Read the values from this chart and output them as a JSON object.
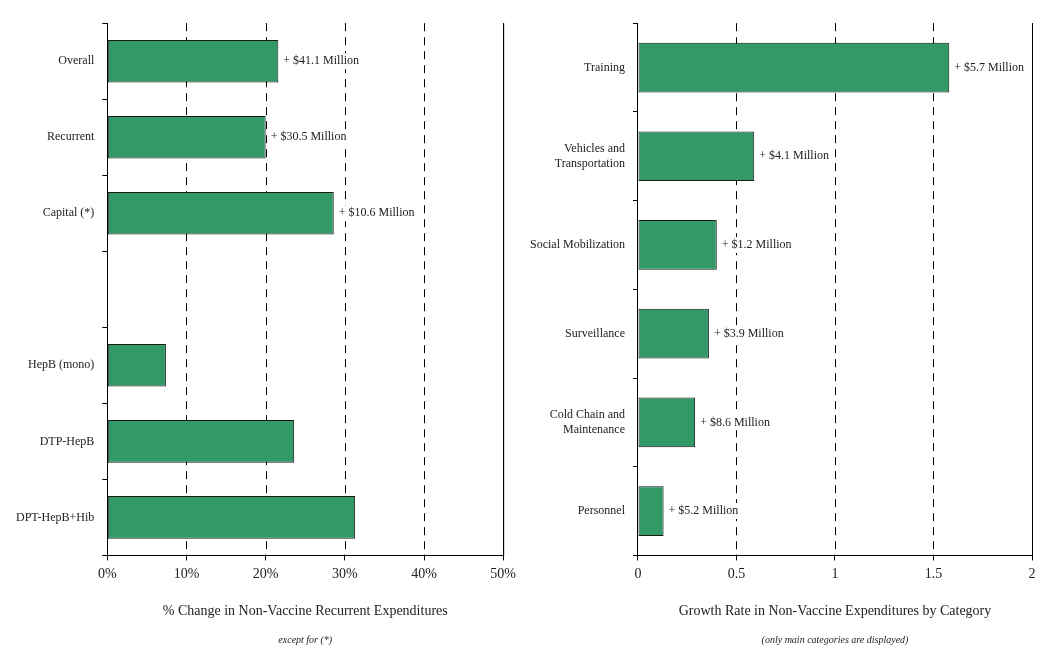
{
  "chart_data": [
    {
      "type": "bar",
      "orientation": "horizontal",
      "xlabel": "% Change in Non-Vaccine Recurrent Expenditures",
      "annotations": [
        "except for (*)",
        {
          "text": "+ $41.1 Million",
          "x": 21.6,
          "y": "Overall"
        },
        {
          "text": "+ $30.5 Million",
          "x": 20.0,
          "y": "Recurrent"
        },
        {
          "text": "+ $10.6 Million",
          "x": 28.6,
          "y": "Capital (*)"
        }
      ],
      "categories": [
        "Overall",
        "Recurrent",
        "Capital (*)",
        null,
        "HepB (mono)",
        "DTP-HepB",
        "DPT-HepB+Hib"
      ],
      "values": [
        21.6,
        20.0,
        28.6,
        null,
        7.4,
        23.6,
        31.3
      ],
      "color": "#339966",
      "xlim": [
        0,
        50
      ],
      "xticks": [
        {
          "value": 0,
          "label": "0%"
        },
        {
          "value": 10,
          "label": "10%"
        },
        {
          "value": 20,
          "label": "20%"
        },
        {
          "value": 30,
          "label": "30%"
        },
        {
          "value": 40,
          "label": "40%"
        },
        {
          "value": 50,
          "label": "50%"
        }
      ],
      "grid": "x",
      "legend": false
    },
    {
      "type": "bar",
      "orientation": "horizontal",
      "xlabel": "Growth Rate in Non-Vaccine Expenditures by Category",
      "annotations": [
        "(only main categories are displayed)",
        {
          "text": "+ $5.7 Million",
          "x": 1.58,
          "y": "Training"
        },
        {
          "text": "+ $4.1 Million",
          "x": 0.59,
          "y": "Vehicles and Transportation"
        },
        {
          "text": "+ $1.2 Million",
          "x": 0.4,
          "y": "Social Mobilization"
        },
        {
          "text": "+ $3.9 Million",
          "x": 0.36,
          "y": "Surveillance"
        },
        {
          "text": "+ $8.6 Million",
          "x": 0.29,
          "y": "Cold Chain and Maintenance"
        },
        {
          "text": "+ $5.2 Million",
          "x": 0.13,
          "y": "Personnel"
        }
      ],
      "categories": [
        "Training",
        "Vehicles and Transportation",
        "Social Mobilization",
        "Surveillance",
        "Cold Chain and Maintenance",
        "Personnel"
      ],
      "values": [
        1.58,
        0.59,
        0.4,
        0.36,
        0.29,
        0.13
      ],
      "color": "#339966",
      "xlim": [
        0,
        2
      ],
      "xticks": [
        0,
        0.5,
        1,
        1.5,
        2
      ],
      "grid": "x",
      "legend": false
    }
  ]
}
